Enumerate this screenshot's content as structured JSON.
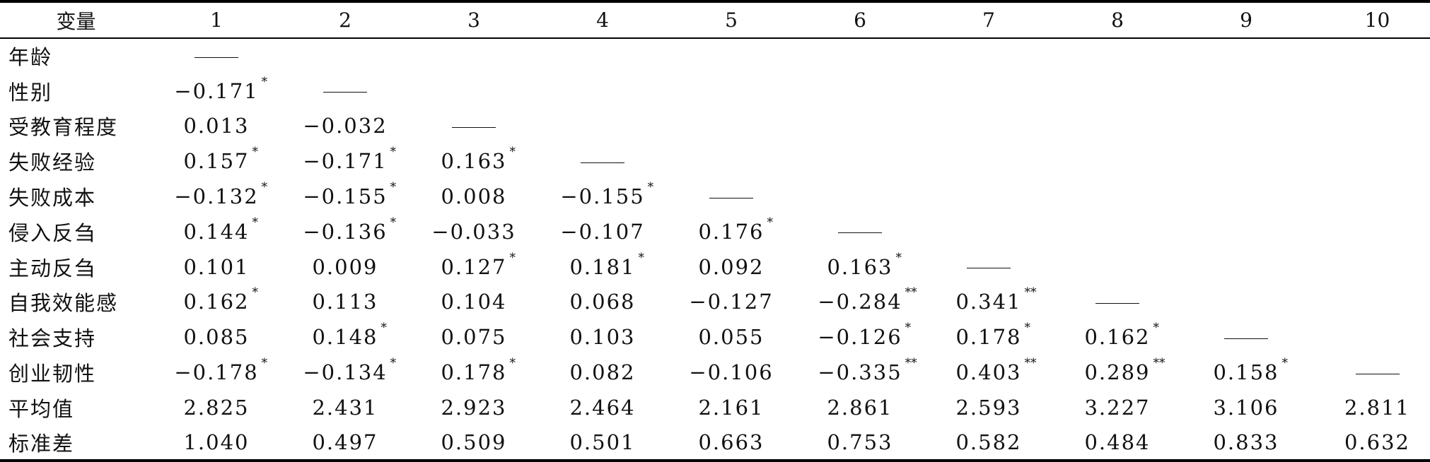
{
  "table": {
    "header": [
      "变量",
      "1",
      "2",
      "3",
      "4",
      "5",
      "6",
      "7",
      "8",
      "9",
      "10"
    ],
    "rows": [
      {
        "label": "年龄",
        "cells": [
          {
            "dash": true
          }
        ]
      },
      {
        "label": "性别",
        "cells": [
          {
            "v": "−0.171",
            "s": "*"
          },
          {
            "dash": true
          }
        ]
      },
      {
        "label": "受教育程度",
        "cells": [
          {
            "v": "0.013"
          },
          {
            "v": "−0.032"
          },
          {
            "dash": true
          }
        ]
      },
      {
        "label": "失败经验",
        "cells": [
          {
            "v": "0.157",
            "s": "*"
          },
          {
            "v": "−0.171",
            "s": "*"
          },
          {
            "v": "0.163",
            "s": "*"
          },
          {
            "dash": true
          }
        ]
      },
      {
        "label": "失败成本",
        "cells": [
          {
            "v": "−0.132",
            "s": "*"
          },
          {
            "v": "−0.155",
            "s": "*"
          },
          {
            "v": "0.008"
          },
          {
            "v": "−0.155",
            "s": "*"
          },
          {
            "dash": true
          }
        ]
      },
      {
        "label": "侵入反刍",
        "cells": [
          {
            "v": "0.144",
            "s": "*"
          },
          {
            "v": "−0.136",
            "s": "*"
          },
          {
            "v": "−0.033"
          },
          {
            "v": "−0.107"
          },
          {
            "v": "0.176",
            "s": "*"
          },
          {
            "dash": true
          }
        ]
      },
      {
        "label": "主动反刍",
        "cells": [
          {
            "v": "0.101"
          },
          {
            "v": "0.009"
          },
          {
            "v": "0.127",
            "s": "*"
          },
          {
            "v": "0.181",
            "s": "*"
          },
          {
            "v": "0.092"
          },
          {
            "v": "0.163",
            "s": "*"
          },
          {
            "dash": true
          }
        ]
      },
      {
        "label": "自我效能感",
        "cells": [
          {
            "v": "0.162",
            "s": "*"
          },
          {
            "v": "0.113"
          },
          {
            "v": "0.104"
          },
          {
            "v": "0.068"
          },
          {
            "v": "−0.127"
          },
          {
            "v": "−0.284",
            "s": "**"
          },
          {
            "v": "0.341",
            "s": "**"
          },
          {
            "dash": true
          }
        ]
      },
      {
        "label": "社会支持",
        "cells": [
          {
            "v": "0.085"
          },
          {
            "v": "0.148",
            "s": "*"
          },
          {
            "v": "0.075"
          },
          {
            "v": "0.103"
          },
          {
            "v": "0.055"
          },
          {
            "v": "−0.126",
            "s": "*"
          },
          {
            "v": "0.178",
            "s": "*"
          },
          {
            "v": "0.162",
            "s": "*"
          },
          {
            "dash": true
          }
        ]
      },
      {
        "label": "创业韧性",
        "cells": [
          {
            "v": "−0.178",
            "s": "*"
          },
          {
            "v": "−0.134",
            "s": "*"
          },
          {
            "v": "0.178",
            "s": "*"
          },
          {
            "v": "0.082"
          },
          {
            "v": "−0.106"
          },
          {
            "v": "−0.335",
            "s": "**"
          },
          {
            "v": "0.403",
            "s": "**"
          },
          {
            "v": "0.289",
            "s": "**"
          },
          {
            "v": "0.158",
            "s": "*"
          },
          {
            "dash": true
          }
        ]
      },
      {
        "label": "平均值",
        "cells": [
          {
            "v": "2.825"
          },
          {
            "v": "2.431"
          },
          {
            "v": "2.923"
          },
          {
            "v": "2.464"
          },
          {
            "v": "2.161"
          },
          {
            "v": "2.861"
          },
          {
            "v": "2.593"
          },
          {
            "v": "3.227"
          },
          {
            "v": "3.106"
          },
          {
            "v": "2.811"
          }
        ]
      },
      {
        "label": "标准差",
        "cells": [
          {
            "v": "1.040"
          },
          {
            "v": "0.497"
          },
          {
            "v": "0.509"
          },
          {
            "v": "0.501"
          },
          {
            "v": "0.663"
          },
          {
            "v": "0.753"
          },
          {
            "v": "0.582"
          },
          {
            "v": "0.484"
          },
          {
            "v": "0.833"
          },
          {
            "v": "0.632"
          }
        ]
      }
    ]
  }
}
